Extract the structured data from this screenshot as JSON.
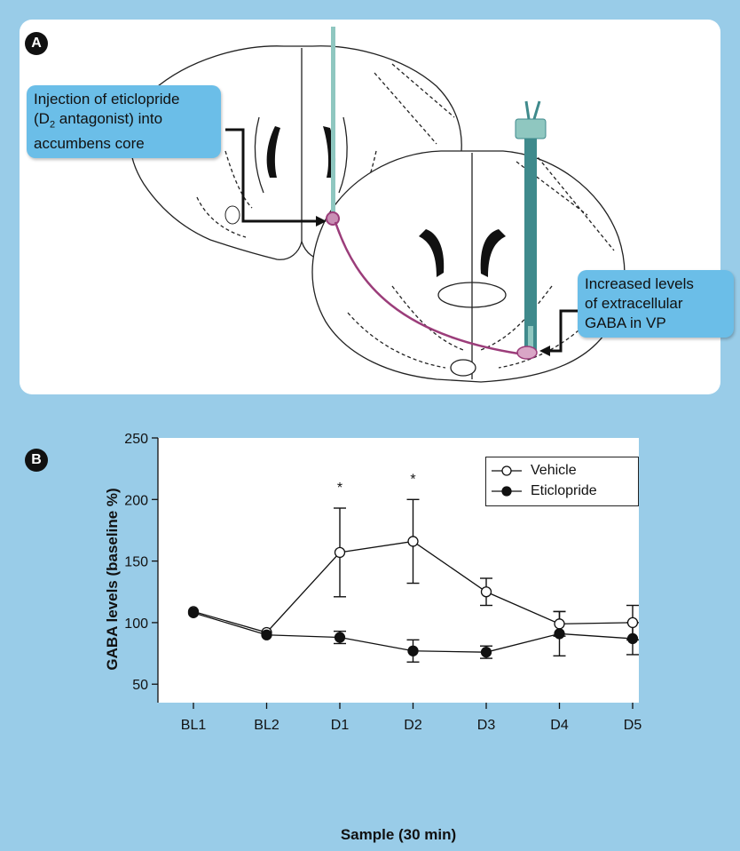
{
  "panel_a": {
    "label": "A",
    "callout_left": {
      "lines": [
        "Injection of eticlopride",
        "(D",
        "2",
        " antagonist) into",
        "accumbens core"
      ]
    },
    "callout_right": {
      "lines": [
        "Increased levels",
        "of extracellular",
        "GABA in VP"
      ]
    },
    "colors": {
      "cannula": "#8FC7C0",
      "probe": "#3F8A8C",
      "pathway": "#9B3D7A",
      "callout": "#6BBEE8"
    }
  },
  "panel_b": {
    "label": "B"
  },
  "chart_data": {
    "type": "line",
    "title": "",
    "xlabel": "Sample (30 min)",
    "ylabel": "GABA levels (baseline %)",
    "categories": [
      "BL1",
      "BL2",
      "D1",
      "D2",
      "D3",
      "D4",
      "D5"
    ],
    "ylim": [
      35,
      250
    ],
    "yticks": [
      50,
      100,
      150,
      200,
      250
    ],
    "grid": false,
    "legend_position": "top-right",
    "series": [
      {
        "name": "Vehicle",
        "marker": "open-circle",
        "values": [
          109,
          92,
          157,
          166,
          125,
          99,
          100
        ],
        "error": [
          0,
          0,
          36,
          34,
          11,
          10,
          14
        ]
      },
      {
        "name": "Eticlopride",
        "marker": "filled-circle",
        "values": [
          108,
          90,
          88,
          77,
          76,
          91,
          87
        ],
        "error": [
          0,
          0,
          5,
          9,
          5,
          18,
          13
        ]
      }
    ],
    "annotations": [
      {
        "category": "D1",
        "text": "*",
        "y": 206
      },
      {
        "category": "D2",
        "text": "*",
        "y": 213
      }
    ]
  }
}
